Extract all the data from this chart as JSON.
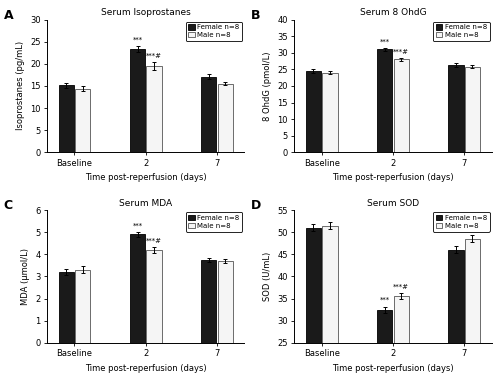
{
  "panels": [
    {
      "label": "A",
      "title": "Serum Isoprostanes",
      "ylabel": "Isoprostanes (pg/mL)",
      "ylim": [
        0,
        30
      ],
      "yticks": [
        0,
        5,
        10,
        15,
        20,
        25,
        30
      ],
      "female_means": [
        15.1,
        23.3,
        17.1
      ],
      "male_means": [
        14.4,
        19.5,
        15.5
      ],
      "female_errors": [
        0.6,
        0.7,
        0.5
      ],
      "male_errors": [
        0.5,
        0.8,
        0.4
      ],
      "sig_female_day2": true,
      "sig_male_day2": true
    },
    {
      "label": "B",
      "title": "Serum 8 OhdG",
      "ylabel": "8 OhdG (pmol/L)",
      "ylim": [
        0,
        40
      ],
      "yticks": [
        0,
        5,
        10,
        15,
        20,
        25,
        30,
        35,
        40
      ],
      "female_means": [
        24.5,
        31.0,
        26.3
      ],
      "male_means": [
        24.0,
        28.0,
        25.8
      ],
      "female_errors": [
        0.5,
        0.5,
        0.5
      ],
      "male_errors": [
        0.5,
        0.4,
        0.4
      ],
      "sig_female_day2": true,
      "sig_male_day2": true
    },
    {
      "label": "C",
      "title": "Serum MDA",
      "ylabel": "MDA (μmol/L)",
      "ylim": [
        0,
        6
      ],
      "yticks": [
        0,
        1,
        2,
        3,
        4,
        5,
        6
      ],
      "female_means": [
        3.2,
        4.9,
        3.75
      ],
      "male_means": [
        3.3,
        4.2,
        3.7
      ],
      "female_errors": [
        0.15,
        0.12,
        0.1
      ],
      "male_errors": [
        0.15,
        0.12,
        0.1
      ],
      "sig_female_day2": true,
      "sig_male_day2": true
    },
    {
      "label": "D",
      "title": "Serum SOD",
      "ylabel": "SOD (U/mL)",
      "ylim": [
        25,
        55
      ],
      "yticks": [
        25,
        30,
        35,
        40,
        45,
        50,
        55
      ],
      "female_means": [
        51.0,
        32.5,
        46.0
      ],
      "male_means": [
        51.5,
        35.5,
        48.5
      ],
      "female_errors": [
        0.8,
        0.7,
        0.8
      ],
      "male_errors": [
        0.8,
        0.7,
        0.8
      ],
      "sig_female_day2": true,
      "sig_male_day2": true
    }
  ],
  "xticklabels": [
    "Baseline",
    "2",
    "7"
  ],
  "xlabel": "Time post-reperfusion (days)",
  "female_color": "#1a1a1a",
  "male_color": "#f5f5f5",
  "male_edge_color": "#555555",
  "bar_width": 0.28,
  "group_positions": [
    0.5,
    1.8,
    3.1
  ],
  "xlim": [
    0.0,
    3.6
  ],
  "legend_female": "Female n=8",
  "legend_male": "Male n=8",
  "sig_star_female": "***",
  "sig_star_male": "***#"
}
